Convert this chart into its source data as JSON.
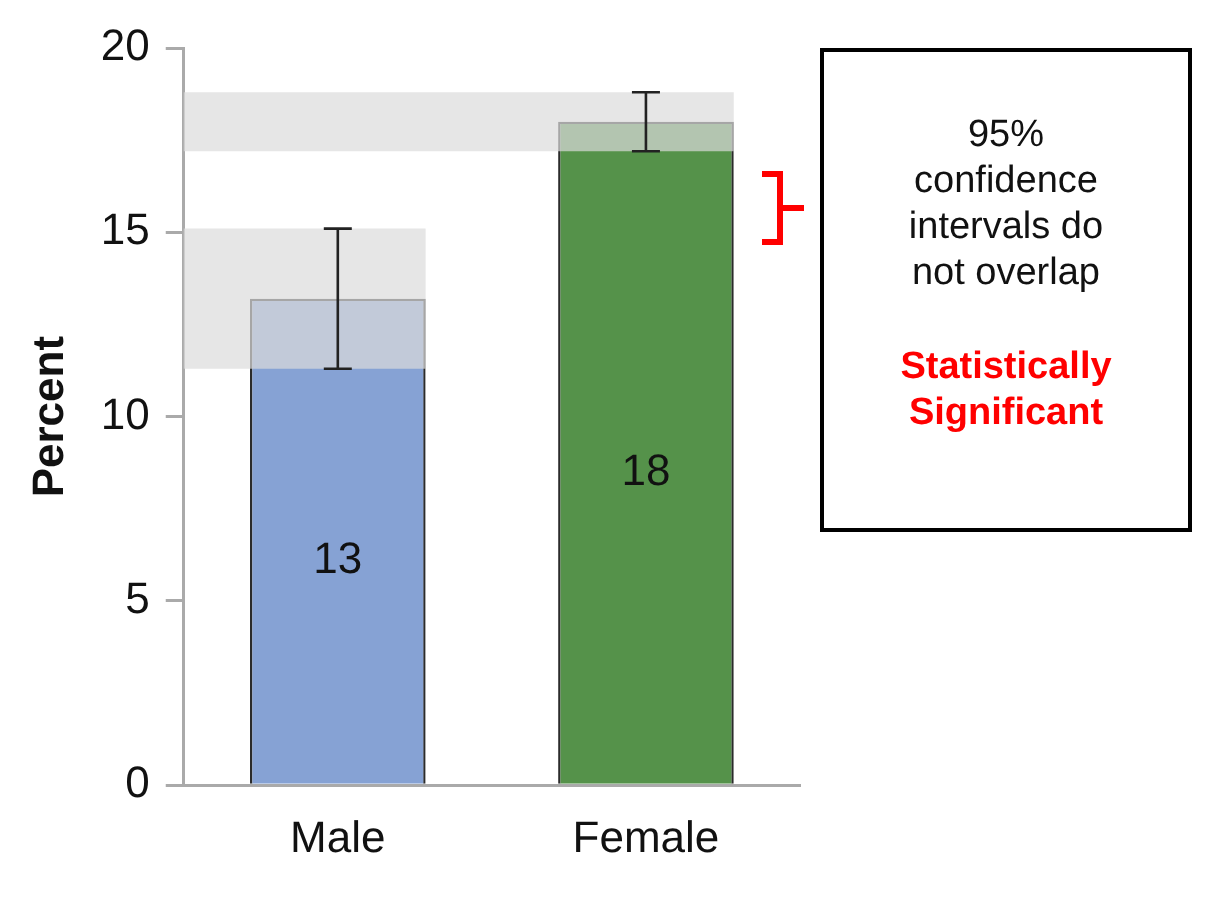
{
  "chart_data": {
    "type": "bar",
    "ylabel": "Percent",
    "categories": [
      "Male",
      "Female"
    ],
    "values": [
      13.2,
      18.0
    ],
    "value_labels": [
      "13",
      "18"
    ],
    "colors": [
      "#86a2d4",
      "#55924a"
    ],
    "errors": [
      [
        11.3,
        15.1
      ],
      [
        17.2,
        18.8
      ]
    ],
    "bands": [
      {
        "axis": "y",
        "from": 11.3,
        "to": 15.1,
        "color": "#dcdcdc"
      },
      {
        "axis": "y",
        "from": 17.2,
        "to": 18.8,
        "color": "#dcdcdc"
      }
    ],
    "ylim": [
      0,
      20
    ],
    "yticks": [
      0,
      5,
      10,
      15,
      20
    ],
    "grid": false,
    "legend": false,
    "annotations": [
      "95% confidence intervals do not overlap",
      "Statistically Significant"
    ]
  }
}
